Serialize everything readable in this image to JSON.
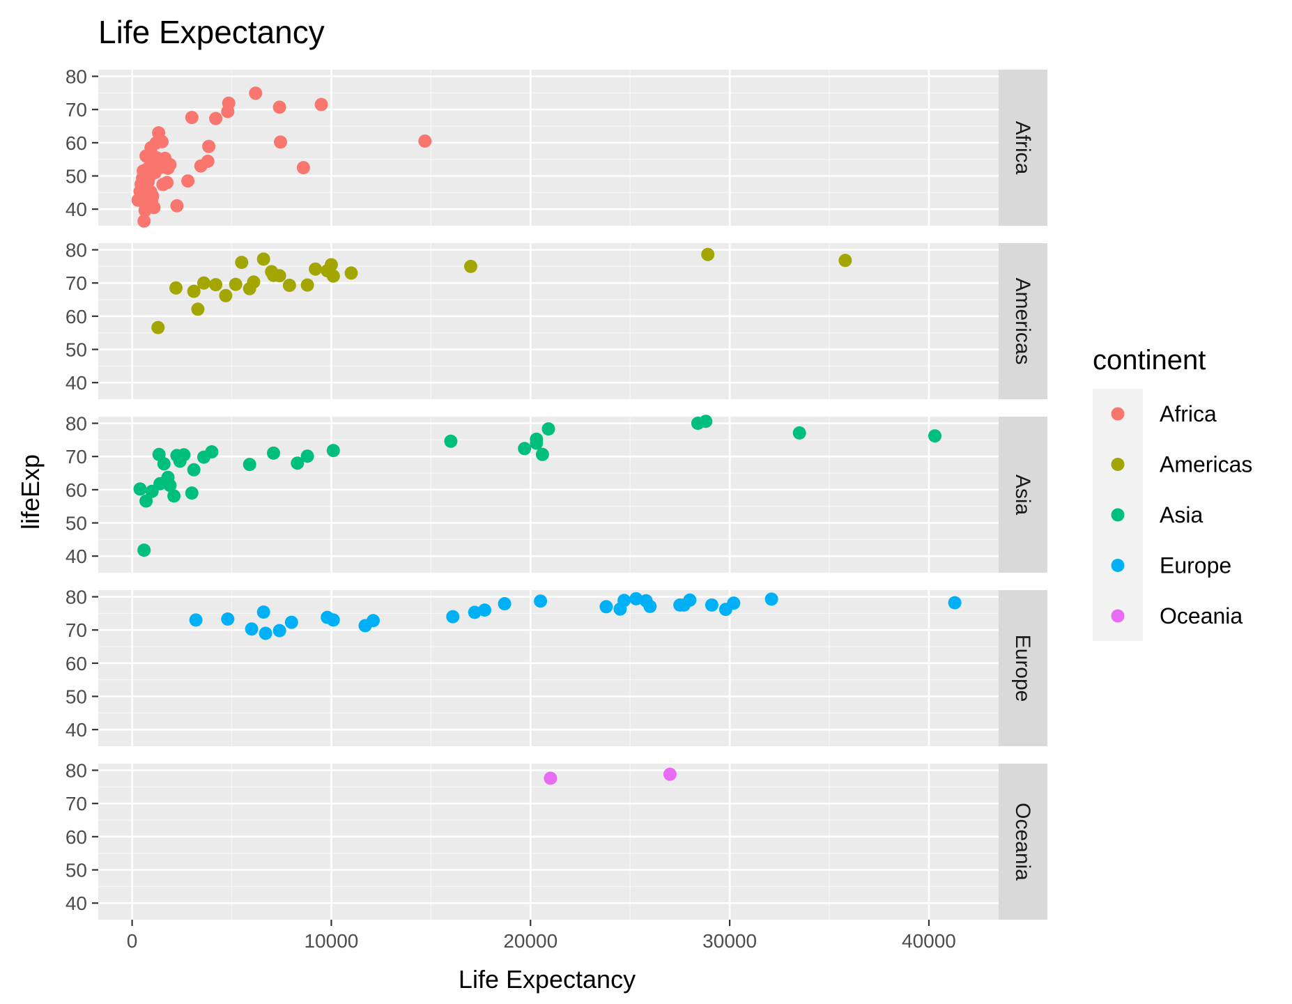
{
  "chart_data": {
    "type": "scatter",
    "title": "Life Expectancy",
    "xlabel": "Life Expectancy",
    "ylabel": "lifeExp",
    "xlim": [
      -1700,
      43500
    ],
    "ylim": [
      35,
      82
    ],
    "x_ticks": [
      0,
      10000,
      20000,
      30000,
      40000
    ],
    "y_ticks": [
      40,
      50,
      60,
      70,
      80
    ],
    "grid": true,
    "legend": {
      "title": "continent",
      "position": "right"
    },
    "series": [
      {
        "name": "Africa",
        "color": "#F8766D",
        "points": [
          [
            300,
            42.7
          ],
          [
            400,
            45.3
          ],
          [
            420,
            43.5
          ],
          [
            450,
            47.5
          ],
          [
            500,
            44.3
          ],
          [
            520,
            49.3
          ],
          [
            560,
            51.5
          ],
          [
            600,
            36.4
          ],
          [
            620,
            46.4
          ],
          [
            650,
            39.6
          ],
          [
            680,
            41.2
          ],
          [
            700,
            56.0
          ],
          [
            720,
            47.8
          ],
          [
            740,
            43.0
          ],
          [
            780,
            52.2
          ],
          [
            800,
            48.2
          ],
          [
            830,
            44.0
          ],
          [
            860,
            49.7
          ],
          [
            880,
            55.2
          ],
          [
            900,
            50.4
          ],
          [
            930,
            45.2
          ],
          [
            950,
            58.5
          ],
          [
            980,
            42.4
          ],
          [
            1000,
            50.8
          ],
          [
            1030,
            43.9
          ],
          [
            1050,
            53.2
          ],
          [
            1080,
            55.9
          ],
          [
            1100,
            40.5
          ],
          [
            1150,
            51.0
          ],
          [
            1200,
            59.9
          ],
          [
            1250,
            55.4
          ],
          [
            1300,
            54.1
          ],
          [
            1330,
            63.0
          ],
          [
            1450,
            52.6
          ],
          [
            1500,
            60.3
          ],
          [
            1550,
            47.4
          ],
          [
            1650,
            55.3
          ],
          [
            1750,
            48.0
          ],
          [
            1800,
            52.3
          ],
          [
            1900,
            53.4
          ],
          [
            2250,
            41.0
          ],
          [
            2800,
            48.5
          ],
          [
            3000,
            67.6
          ],
          [
            3450,
            53.0
          ],
          [
            3800,
            54.4
          ],
          [
            3850,
            58.9
          ],
          [
            4200,
            67.3
          ],
          [
            4800,
            69.4
          ],
          [
            4850,
            71.9
          ],
          [
            6200,
            74.9
          ],
          [
            7400,
            70.7
          ],
          [
            7450,
            60.2
          ],
          [
            8600,
            52.5
          ],
          [
            9500,
            71.5
          ],
          [
            14700,
            60.5
          ]
        ]
      },
      {
        "name": "Americas",
        "color": "#A3A500",
        "points": [
          [
            1300,
            56.6
          ],
          [
            2200,
            68.5
          ],
          [
            3100,
            67.5
          ],
          [
            3300,
            62.1
          ],
          [
            3600,
            70.0
          ],
          [
            4200,
            69.5
          ],
          [
            4700,
            66.2
          ],
          [
            5200,
            69.6
          ],
          [
            5500,
            76.2
          ],
          [
            5900,
            68.3
          ],
          [
            6100,
            70.3
          ],
          [
            6600,
            77.2
          ],
          [
            7000,
            73.4
          ],
          [
            7100,
            72.3
          ],
          [
            7400,
            72.2
          ],
          [
            7900,
            69.3
          ],
          [
            8800,
            69.4
          ],
          [
            9200,
            74.2
          ],
          [
            9800,
            73.7
          ],
          [
            10000,
            75.5
          ],
          [
            10100,
            72.1
          ],
          [
            11000,
            73.0
          ],
          [
            17000,
            75.0
          ],
          [
            28900,
            78.6
          ],
          [
            35800,
            76.8
          ]
        ]
      },
      {
        "name": "Asia",
        "color": "#00BF7D",
        "points": [
          [
            400,
            60.2
          ],
          [
            600,
            41.8
          ],
          [
            700,
            56.6
          ],
          [
            1000,
            59.5
          ],
          [
            1350,
            70.6
          ],
          [
            1400,
            61.8
          ],
          [
            1600,
            67.8
          ],
          [
            1800,
            63.7
          ],
          [
            1900,
            61.3
          ],
          [
            2100,
            58.1
          ],
          [
            2250,
            70.3
          ],
          [
            2400,
            68.6
          ],
          [
            2600,
            70.5
          ],
          [
            3000,
            59.0
          ],
          [
            3100,
            66.0
          ],
          [
            3600,
            69.8
          ],
          [
            4000,
            71.4
          ],
          [
            5900,
            67.6
          ],
          [
            7100,
            71.0
          ],
          [
            8300,
            68.0
          ],
          [
            8800,
            70.1
          ],
          [
            10100,
            71.8
          ],
          [
            16000,
            74.6
          ],
          [
            19700,
            72.4
          ],
          [
            20300,
            75.2
          ],
          [
            20300,
            74.0
          ],
          [
            20600,
            70.6
          ],
          [
            20900,
            78.3
          ],
          [
            28400,
            80.0
          ],
          [
            28800,
            80.6
          ],
          [
            33500,
            77.1
          ],
          [
            40300,
            76.2
          ]
        ]
      },
      {
        "name": "Europe",
        "color": "#00B0F6",
        "points": [
          [
            3200,
            73.0
          ],
          [
            4800,
            73.3
          ],
          [
            6000,
            70.3
          ],
          [
            6600,
            75.4
          ],
          [
            6700,
            69.0
          ],
          [
            7400,
            69.8
          ],
          [
            8000,
            72.3
          ],
          [
            9800,
            73.8
          ],
          [
            10100,
            73.0
          ],
          [
            11700,
            71.3
          ],
          [
            12100,
            72.8
          ],
          [
            16100,
            74.0
          ],
          [
            17200,
            75.3
          ],
          [
            17700,
            76.0
          ],
          [
            18700,
            77.9
          ],
          [
            20500,
            78.7
          ],
          [
            23800,
            77.0
          ],
          [
            24500,
            76.3
          ],
          [
            24700,
            78.9
          ],
          [
            25300,
            79.4
          ],
          [
            25800,
            78.8
          ],
          [
            26000,
            77.1
          ],
          [
            27500,
            77.5
          ],
          [
            27700,
            77.5
          ],
          [
            28000,
            79.0
          ],
          [
            29100,
            77.5
          ],
          [
            29800,
            76.2
          ],
          [
            30200,
            78.1
          ],
          [
            32100,
            79.3
          ],
          [
            41300,
            78.2
          ]
        ]
      },
      {
        "name": "Oceania",
        "color": "#E76BF3",
        "points": [
          [
            21000,
            77.6
          ],
          [
            27000,
            78.8
          ]
        ]
      }
    ]
  }
}
